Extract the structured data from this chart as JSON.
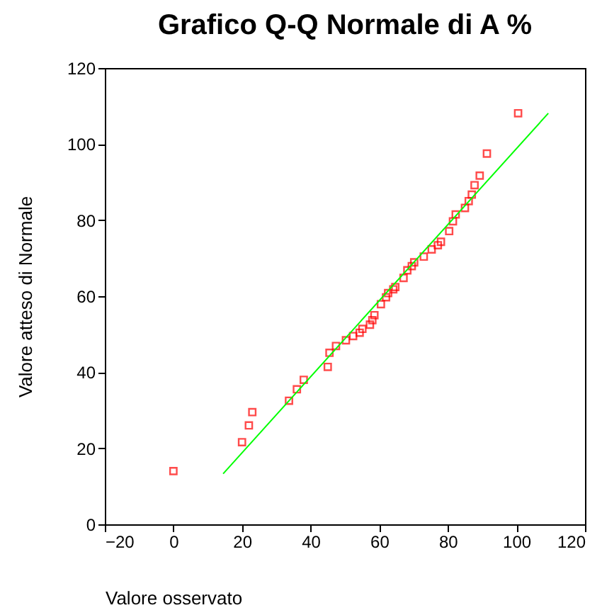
{
  "chart_data": {
    "type": "scatter",
    "title": "Grafico Q-Q Normale di A %",
    "xlabel": "Valore osservato",
    "ylabel": "Valore atteso di Normale",
    "xlim": [
      -20,
      120
    ],
    "xticks": [
      -20,
      0,
      20,
      40,
      60,
      80,
      100,
      120
    ],
    "ylim": [
      0,
      120
    ],
    "yticks": [
      0,
      20,
      40,
      60,
      80,
      100,
      120
    ],
    "grid": false,
    "legend": false,
    "series": [
      {
        "type": "scatter",
        "color": "#ff0000",
        "marker": "square",
        "x": [
          0,
          20,
          22,
          23,
          33.7,
          36,
          38,
          45,
          45.5,
          47.4,
          50.3,
          52.4,
          54.3,
          55.1,
          57.3,
          58,
          58.6,
          60.5,
          62,
          62.6,
          64.1,
          64.7,
          67.1,
          68.2,
          69.5,
          70.2,
          73,
          75.3,
          77.1,
          78,
          80.4,
          81.5,
          82.3,
          85,
          86.1,
          87,
          87.8,
          89.3,
          91.4,
          100.5
        ],
        "values": [
          14,
          21.6,
          26,
          29.5,
          32.5,
          35.5,
          38,
          41.4,
          45.1,
          46.9,
          48.4,
          49.5,
          50.4,
          51.4,
          52.5,
          53.7,
          55,
          57.9,
          59.7,
          60.8,
          61.8,
          62.4,
          64.8,
          66.8,
          67.9,
          68.9,
          70.4,
          72.3,
          73.4,
          74.3,
          77.1,
          79.7,
          81.5,
          83.2,
          85,
          86.7,
          89.2,
          91.7,
          97.5,
          108.1
        ]
      },
      {
        "type": "line",
        "color": "#00ff00",
        "line_style": "solid",
        "x": [
          14.5,
          109.3
        ],
        "values": [
          13.3,
          108.1
        ]
      }
    ]
  }
}
